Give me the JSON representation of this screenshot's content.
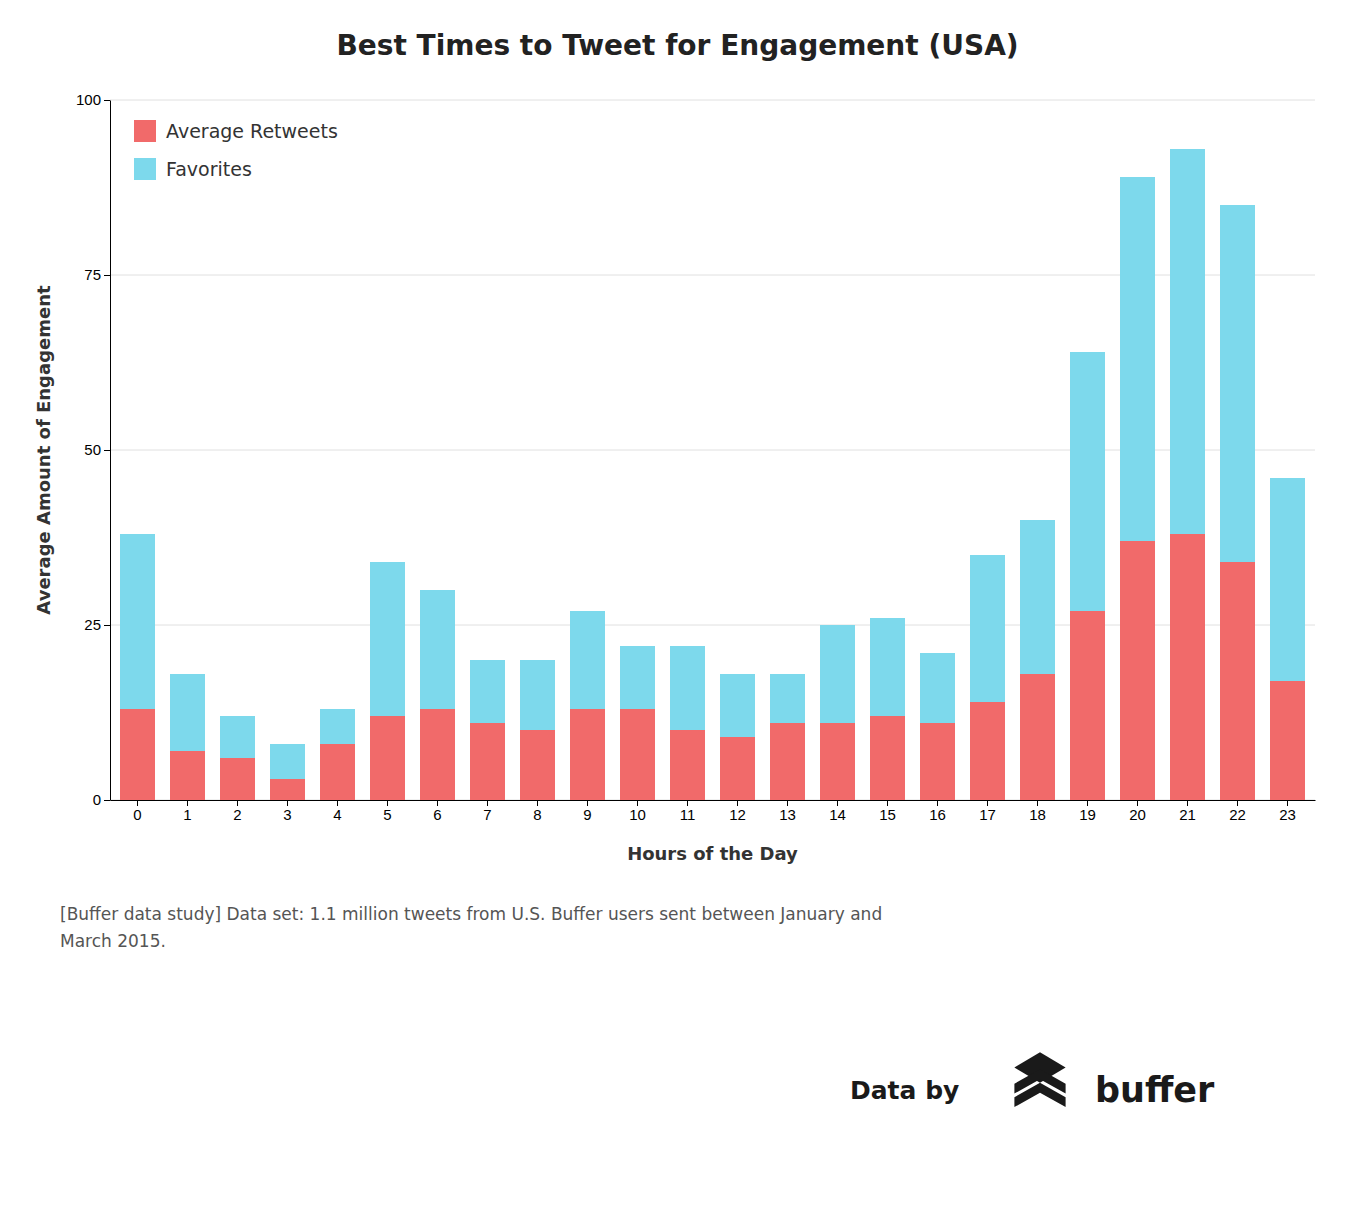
{
  "chart_data": {
    "type": "bar",
    "title": "Best Times to Tweet for Engagement (USA)",
    "xlabel": "Hours of the Day",
    "ylabel": "Average Amount of Engagement",
    "categories": [
      "0",
      "1",
      "2",
      "3",
      "4",
      "5",
      "6",
      "7",
      "8",
      "9",
      "10",
      "11",
      "12",
      "13",
      "14",
      "15",
      "16",
      "17",
      "18",
      "19",
      "20",
      "21",
      "22",
      "23"
    ],
    "series": [
      {
        "name": "Average Retweets",
        "color": "#F16A6A",
        "values": [
          13,
          7,
          6,
          3,
          8,
          12,
          13,
          11,
          10,
          13,
          13,
          10,
          9,
          11,
          11,
          12,
          11,
          14,
          18,
          27,
          37,
          38,
          34,
          17
        ]
      },
      {
        "name": "Favorites",
        "color": "#7DD9EC",
        "values": [
          25,
          11,
          6,
          5,
          5,
          22,
          17,
          9,
          10,
          14,
          9,
          12,
          9,
          7,
          14,
          14,
          10,
          21,
          22,
          37,
          52,
          55,
          51,
          29
        ]
      }
    ],
    "stacked": true,
    "ylim": [
      0,
      100
    ],
    "yticks": [
      0,
      25,
      50,
      75,
      100
    ],
    "grid": true,
    "legend": "upper left",
    "annotations": [
      "[Buffer data study] Data set: 1.1 million tweets from U.S. Buffer users sent between January and\nMarch 2015.",
      "Data by",
      "buffer"
    ]
  }
}
